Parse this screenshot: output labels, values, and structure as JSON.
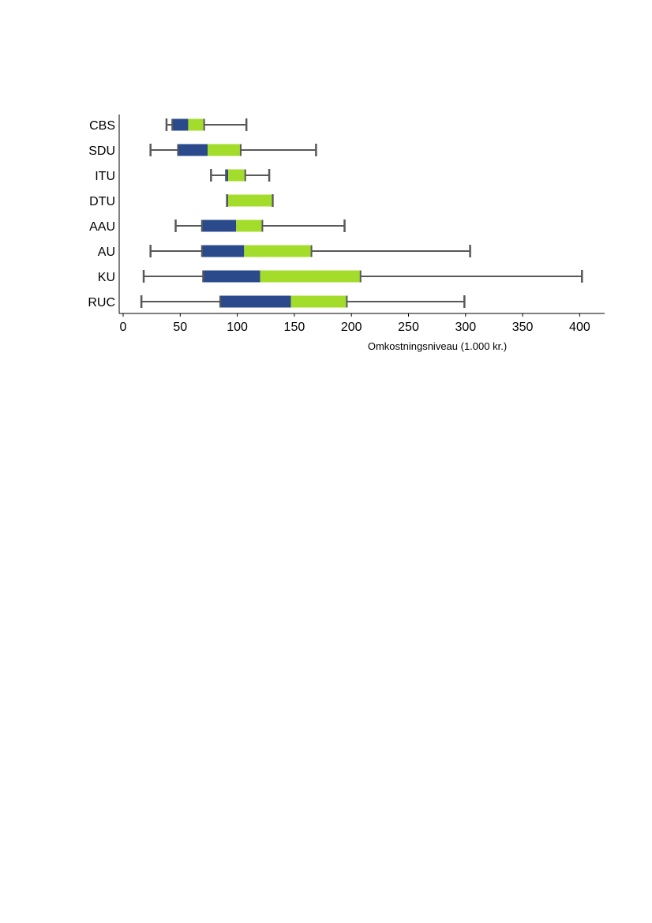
{
  "colors": {
    "q1_box": "#2a4a8c",
    "q3_box": "#a4dc2c",
    "whisker": "#595959",
    "axis": "#000000"
  },
  "chart_data": {
    "type": "boxplot",
    "orientation": "horizontal",
    "title": "",
    "xlabel": "Omkostningsniveau (1.000 kr.)",
    "ylabel": "",
    "xlim": [
      0,
      420
    ],
    "xticks": [
      0,
      50,
      100,
      150,
      200,
      250,
      300,
      350,
      400
    ],
    "grid": false,
    "legend": "none",
    "categories": [
      "CBS",
      "SDU",
      "ITU",
      "DTU",
      "AAU",
      "AU",
      "KU",
      "RUC"
    ],
    "series": [
      {
        "category": "CBS",
        "min": 38,
        "q1": 43,
        "median": 57,
        "q3": 71,
        "max": 108
      },
      {
        "category": "SDU",
        "min": 24,
        "q1": 48,
        "median": 74,
        "q3": 103,
        "max": 169
      },
      {
        "category": "ITU",
        "min": 77,
        "q1": 90,
        "median": 92,
        "q3": 107,
        "max": 128
      },
      {
        "category": "DTU",
        "min": 91,
        "q1": 91,
        "median": 92,
        "q3": 131,
        "max": 131
      },
      {
        "category": "AAU",
        "min": 46,
        "q1": 69,
        "median": 99,
        "q3": 122,
        "max": 194
      },
      {
        "category": "AU",
        "min": 24,
        "q1": 69,
        "median": 106,
        "q3": 165,
        "max": 304
      },
      {
        "category": "KU",
        "min": 18,
        "q1": 70,
        "median": 120,
        "q3": 208,
        "max": 402
      },
      {
        "category": "RUC",
        "min": 16,
        "q1": 85,
        "median": 147,
        "q3": 196,
        "max": 299
      }
    ]
  }
}
